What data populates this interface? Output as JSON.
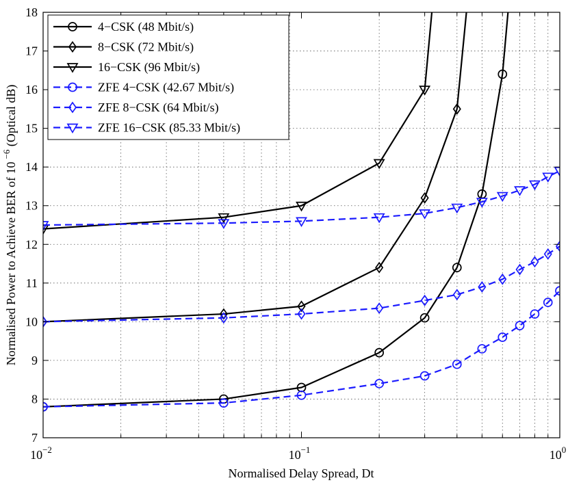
{
  "chart_data": {
    "type": "line",
    "title": "",
    "xlabel": "Normalised Delay Spread, Dt",
    "ylabel_prefix": "Normalised Power to Achieve BER of 10",
    "ylabel_exp": "−6",
    "ylabel_suffix": " (Optical dB)",
    "xscale": "log",
    "xlim": [
      0.01,
      1
    ],
    "ylim": [
      7,
      18
    ],
    "grid": true,
    "legend_position": "top-left",
    "x_ticks": [
      {
        "value": 0.01,
        "base": "10",
        "exp": "−2"
      },
      {
        "value": 0.1,
        "base": "10",
        "exp": "−1"
      },
      {
        "value": 1,
        "base": "10",
        "exp": "0"
      }
    ],
    "y_ticks": [
      "7",
      "8",
      "9",
      "10",
      "11",
      "12",
      "13",
      "14",
      "15",
      "16",
      "17",
      "18"
    ],
    "series": [
      {
        "name": "4−CSK (48 Mbit/s)",
        "color": "#000000",
        "dash": "solid",
        "marker": "circle",
        "x": [
          0.01,
          0.05,
          0.1,
          0.2,
          0.3,
          0.4,
          0.5,
          0.6
        ],
        "y": [
          7.8,
          8.0,
          8.3,
          9.2,
          10.1,
          11.4,
          13.3,
          16.4
        ],
        "tail": [
          0.65,
          19
        ]
      },
      {
        "name": "8−CSK (72 Mbit/s)",
        "color": "#000000",
        "dash": "solid",
        "marker": "diamond",
        "x": [
          0.01,
          0.05,
          0.1,
          0.2,
          0.3,
          0.4
        ],
        "y": [
          10.0,
          10.2,
          10.4,
          11.4,
          13.2,
          15.5
        ],
        "tail": [
          0.45,
          19
        ]
      },
      {
        "name": "16−CSK (96 Mbit/s)",
        "color": "#000000",
        "dash": "solid",
        "marker": "triangle-down",
        "x": [
          0.01,
          0.05,
          0.1,
          0.2,
          0.3
        ],
        "y": [
          12.4,
          12.7,
          13.0,
          14.1,
          16.0
        ],
        "tail": [
          0.33,
          19
        ]
      },
      {
        "name": "ZFE 4−CSK (42.67 Mbit/s)",
        "color": "#1a1aff",
        "dash": "dashed",
        "marker": "circle",
        "x": [
          0.01,
          0.05,
          0.1,
          0.2,
          0.3,
          0.4,
          0.5,
          0.6,
          0.7,
          0.8,
          0.9,
          1.0
        ],
        "y": [
          7.8,
          7.9,
          8.1,
          8.4,
          8.6,
          8.9,
          9.3,
          9.6,
          9.9,
          10.2,
          10.5,
          10.8
        ]
      },
      {
        "name": "ZFE 8−CSK (64 Mbit/s)",
        "color": "#1a1aff",
        "dash": "dashed",
        "marker": "diamond",
        "x": [
          0.01,
          0.05,
          0.1,
          0.2,
          0.3,
          0.4,
          0.5,
          0.6,
          0.7,
          0.8,
          0.9,
          1.0
        ],
        "y": [
          10.0,
          10.1,
          10.2,
          10.35,
          10.55,
          10.7,
          10.9,
          11.1,
          11.35,
          11.55,
          11.75,
          11.95
        ]
      },
      {
        "name": "ZFE 16−CSK (85.33 Mbit/s)",
        "color": "#1a1aff",
        "dash": "dashed",
        "marker": "triangle-down",
        "x": [
          0.01,
          0.05,
          0.1,
          0.2,
          0.3,
          0.4,
          0.5,
          0.6,
          0.7,
          0.8,
          0.9,
          1.0
        ],
        "y": [
          12.5,
          12.55,
          12.6,
          12.7,
          12.8,
          12.95,
          13.1,
          13.25,
          13.4,
          13.55,
          13.75,
          13.9
        ]
      }
    ]
  }
}
